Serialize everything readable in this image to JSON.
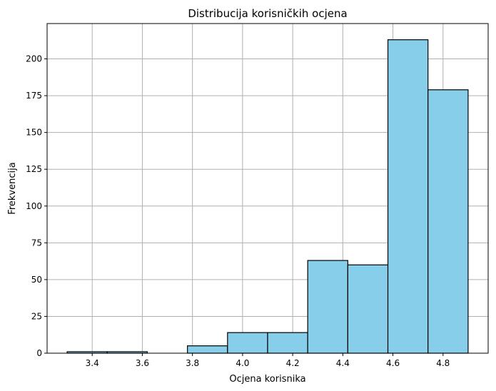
{
  "chart_data": {
    "type": "bar",
    "title": "Distribucija korisničkih ocjena",
    "xlabel": "Ocjena korisnika",
    "ylabel": "Frekvencija",
    "bin_edges": [
      3.3,
      3.46,
      3.62,
      3.78,
      3.94,
      4.1,
      4.26,
      4.42,
      4.58,
      4.74,
      4.9
    ],
    "values": [
      1,
      1,
      0,
      5,
      14,
      14,
      63,
      60,
      213,
      179
    ],
    "xlim": [
      3.22,
      4.98
    ],
    "ylim": [
      0,
      224
    ],
    "xticks": [
      3.4,
      3.6,
      3.8,
      4.0,
      4.2,
      4.4,
      4.6,
      4.8
    ],
    "xtick_labels": [
      "3.4",
      "3.6",
      "3.8",
      "4.0",
      "4.2",
      "4.4",
      "4.6",
      "4.8"
    ],
    "yticks": [
      0,
      25,
      50,
      75,
      100,
      125,
      150,
      175,
      200
    ],
    "ytick_labels": [
      "0",
      "25",
      "50",
      "75",
      "100",
      "125",
      "150",
      "175",
      "200"
    ],
    "grid": true,
    "colors": {
      "bar_fill": "#87ceeb",
      "bar_edge": "#000000",
      "grid": "#b0b0b0"
    }
  }
}
